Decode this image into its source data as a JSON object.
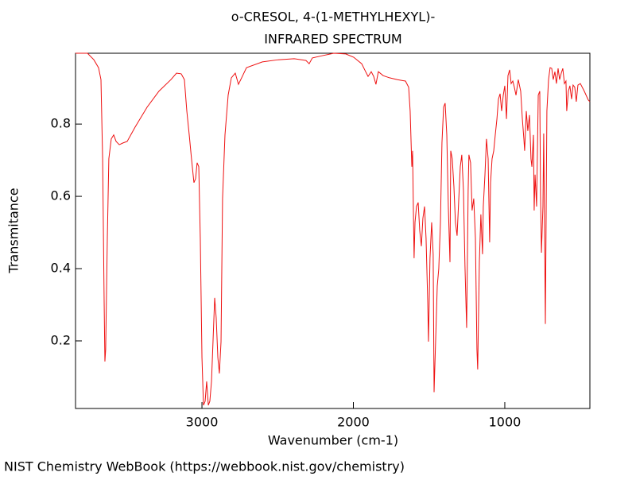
{
  "chart_data": {
    "type": "line",
    "title": "o-CRESOL, 4-(1-METHYLHEXYL)-",
    "subtitle": "INFRARED SPECTRUM",
    "x_label": "Wavenumber (cm-1)",
    "y_label": "Transmitance",
    "footer": "NIST Chemistry WebBook (https://webbook.nist.gov/chemistry)",
    "color": "#ee1111",
    "xlim": [
      3835,
      438
    ],
    "ylim": [
      0.013,
      0.996
    ],
    "xticks": [
      3000,
      2000,
      1000
    ],
    "yticks": [
      0.2,
      0.4,
      0.6,
      0.8
    ],
    "x": [
      3835,
      3756,
      3714,
      3683,
      3667,
      3656,
      3646,
      3641,
      3636,
      3625,
      3615,
      3599,
      3583,
      3567,
      3546,
      3520,
      3494,
      3441,
      3362,
      3284,
      3205,
      3168,
      3137,
      3116,
      3100,
      3084,
      3069,
      3053,
      3042,
      3032,
      3021,
      3011,
      3000,
      2990,
      2979,
      2969,
      2958,
      2948,
      2937,
      2927,
      2916,
      2906,
      2895,
      2885,
      2874,
      2864,
      2848,
      2827,
      2806,
      2780,
      2759,
      2738,
      2706,
      2601,
      2496,
      2391,
      2313,
      2292,
      2271,
      2208,
      2129,
      2050,
      1998,
      1945,
      1919,
      1903,
      1882,
      1866,
      1851,
      1835,
      1803,
      1761,
      1709,
      1656,
      1635,
      1625,
      1614,
      1609,
      1604,
      1599,
      1593,
      1583,
      1572,
      1562,
      1551,
      1541,
      1530,
      1520,
      1509,
      1504,
      1494,
      1483,
      1473,
      1467,
      1457,
      1446,
      1436,
      1425,
      1415,
      1404,
      1394,
      1383,
      1373,
      1362,
      1357,
      1347,
      1336,
      1326,
      1315,
      1305,
      1294,
      1284,
      1273,
      1263,
      1252,
      1242,
      1237,
      1226,
      1216,
      1205,
      1194,
      1184,
      1179,
      1168,
      1158,
      1147,
      1142,
      1131,
      1121,
      1110,
      1100,
      1094,
      1084,
      1073,
      1063,
      1052,
      1042,
      1031,
      1021,
      1010,
      1000,
      989,
      979,
      968,
      958,
      947,
      937,
      926,
      911,
      895,
      884,
      874,
      869,
      858,
      848,
      837,
      827,
      821,
      811,
      806,
      800,
      790,
      779,
      769,
      764,
      758,
      748,
      743,
      732,
      722,
      711,
      701,
      690,
      680,
      669,
      659,
      648,
      638,
      627,
      617,
      606,
      596,
      591,
      580,
      570,
      559,
      549,
      538,
      528,
      517,
      501,
      475,
      449,
      438
    ],
    "values": [
      0.996,
      0.996,
      0.978,
      0.956,
      0.923,
      0.704,
      0.308,
      0.143,
      0.176,
      0.484,
      0.704,
      0.759,
      0.77,
      0.752,
      0.743,
      0.748,
      0.752,
      0.792,
      0.847,
      0.891,
      0.923,
      0.941,
      0.939,
      0.923,
      0.836,
      0.77,
      0.704,
      0.638,
      0.649,
      0.693,
      0.682,
      0.484,
      0.154,
      0.022,
      0.033,
      0.088,
      0.022,
      0.033,
      0.088,
      0.198,
      0.319,
      0.264,
      0.154,
      0.11,
      0.198,
      0.594,
      0.77,
      0.88,
      0.928,
      0.941,
      0.91,
      0.928,
      0.956,
      0.972,
      0.978,
      0.981,
      0.976,
      0.967,
      0.983,
      0.989,
      0.996,
      0.994,
      0.985,
      0.967,
      0.945,
      0.932,
      0.945,
      0.932,
      0.91,
      0.945,
      0.934,
      0.928,
      0.923,
      0.919,
      0.902,
      0.836,
      0.682,
      0.726,
      0.572,
      0.429,
      0.528,
      0.572,
      0.583,
      0.506,
      0.462,
      0.539,
      0.572,
      0.484,
      0.308,
      0.198,
      0.429,
      0.528,
      0.44,
      0.058,
      0.198,
      0.352,
      0.4,
      0.528,
      0.748,
      0.847,
      0.858,
      0.77,
      0.572,
      0.418,
      0.726,
      0.704,
      0.627,
      0.528,
      0.491,
      0.583,
      0.682,
      0.715,
      0.616,
      0.407,
      0.236,
      0.616,
      0.715,
      0.693,
      0.561,
      0.594,
      0.484,
      0.176,
      0.121,
      0.418,
      0.55,
      0.44,
      0.572,
      0.66,
      0.759,
      0.704,
      0.473,
      0.638,
      0.704,
      0.726,
      0.77,
      0.814,
      0.869,
      0.884,
      0.836,
      0.88,
      0.906,
      0.814,
      0.934,
      0.95,
      0.912,
      0.919,
      0.902,
      0.88,
      0.923,
      0.891,
      0.814,
      0.759,
      0.726,
      0.836,
      0.781,
      0.825,
      0.704,
      0.682,
      0.77,
      0.561,
      0.66,
      0.572,
      0.88,
      0.891,
      0.605,
      0.444,
      0.572,
      0.774,
      0.247,
      0.836,
      0.923,
      0.956,
      0.954,
      0.923,
      0.945,
      0.912,
      0.954,
      0.923,
      0.941,
      0.954,
      0.912,
      0.919,
      0.836,
      0.891,
      0.906,
      0.869,
      0.908,
      0.902,
      0.862,
      0.908,
      0.912,
      0.891,
      0.867,
      0.862
    ]
  }
}
